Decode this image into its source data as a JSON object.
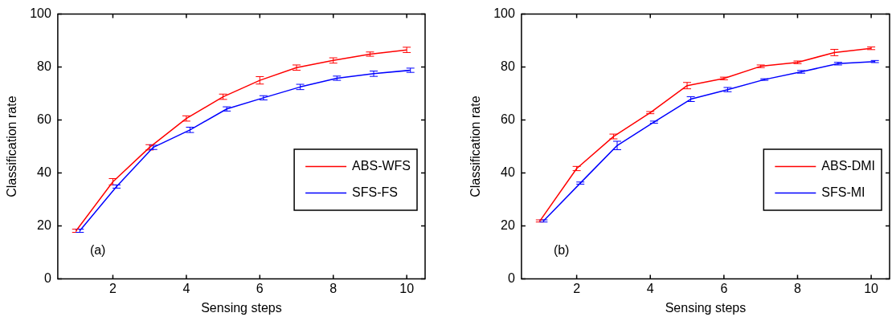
{
  "chart_data": [
    {
      "type": "line",
      "xlabel": "Sensing steps",
      "ylabel": "Classification rate",
      "annotations": [
        "(a)"
      ],
      "xlim": [
        0.5,
        10.5
      ],
      "xticks": [
        2,
        4,
        6,
        8,
        10
      ],
      "ylim": [
        0,
        100
      ],
      "yticks": [
        0,
        20,
        40,
        60,
        80,
        100
      ],
      "legend": "right",
      "marker": "none",
      "series": [
        {
          "name": "ABS-WFS",
          "color": "#ff0000",
          "x": [
            1,
            2,
            3,
            4,
            5,
            6,
            7,
            8,
            9,
            10
          ],
          "values": [
            18.2,
            36.7,
            49.7,
            60.6,
            68.8,
            75.0,
            79.8,
            82.5,
            84.9,
            86.5
          ],
          "errors": [
            0.6,
            1.2,
            1.0,
            1.0,
            1.0,
            1.4,
            1.0,
            1.0,
            0.8,
            1.0
          ]
        },
        {
          "name": "SFS-FS",
          "color": "#0000ff",
          "x": [
            1.1,
            2.1,
            3.1,
            4.1,
            5.1,
            6.1,
            7.1,
            8.1,
            9.1,
            10.1
          ],
          "values": [
            18.2,
            34.9,
            49.7,
            56.3,
            64.2,
            68.4,
            72.5,
            75.8,
            77.5,
            78.8
          ],
          "errors": [
            0.6,
            0.6,
            0.8,
            1.0,
            0.8,
            0.8,
            1.0,
            0.8,
            1.0,
            0.8
          ]
        }
      ]
    },
    {
      "type": "line",
      "xlabel": "Sensing steps",
      "ylabel": "Classification rate",
      "annotations": [
        "(b)"
      ],
      "xlim": [
        0.5,
        10.5
      ],
      "xticks": [
        2,
        4,
        6,
        8,
        10
      ],
      "ylim": [
        0,
        100
      ],
      "yticks": [
        0,
        20,
        40,
        60,
        80,
        100
      ],
      "legend": "right",
      "marker": "none",
      "series": [
        {
          "name": "ABS-DMI",
          "color": "#ff0000",
          "x": [
            1,
            2,
            3,
            4,
            5,
            6,
            7,
            8,
            9,
            10
          ],
          "values": [
            21.9,
            41.7,
            53.8,
            62.8,
            73.0,
            75.7,
            80.3,
            81.8,
            85.5,
            87.1
          ],
          "errors": [
            0.4,
            0.8,
            0.9,
            0.4,
            1.2,
            0.5,
            0.5,
            0.5,
            1.2,
            0.5
          ]
        },
        {
          "name": "SFS-MI",
          "color": "#0000ff",
          "x": [
            1.1,
            2.1,
            3.1,
            4.1,
            5.1,
            6.1,
            7.1,
            8.1,
            9.1,
            10.1
          ],
          "values": [
            21.9,
            36.2,
            50.4,
            59.2,
            67.9,
            71.5,
            75.3,
            78.2,
            81.3,
            82.1
          ],
          "errors": [
            0.4,
            0.4,
            1.6,
            0.4,
            0.9,
            0.8,
            0.3,
            0.5,
            0.5,
            0.4
          ]
        }
      ]
    }
  ]
}
